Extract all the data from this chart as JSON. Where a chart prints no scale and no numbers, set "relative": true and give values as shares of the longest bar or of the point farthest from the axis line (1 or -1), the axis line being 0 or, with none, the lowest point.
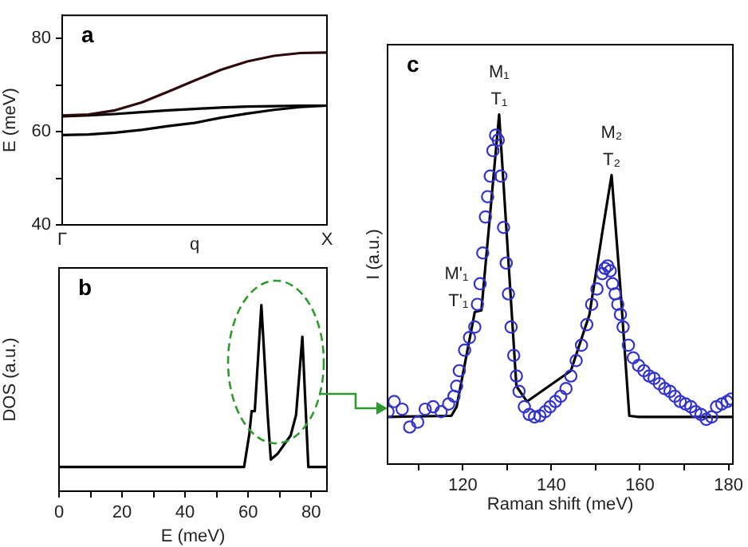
{
  "chart_data": [
    {
      "type": "line",
      "title": "a",
      "xlabel": "q",
      "ylabel": "E (meV)",
      "categories": [
        "Γ",
        null,
        null,
        null,
        null,
        null,
        null,
        null,
        null,
        null,
        "X"
      ],
      "ylim": [
        40,
        85
      ],
      "yticks": [
        40,
        {
          "value": 50,
          "label": null
        },
        60,
        {
          "value": 70,
          "label": null
        },
        80
      ],
      "grid": false,
      "legend": false,
      "series": [
        {
          "color": "#2b0a0a",
          "values": [
            63.5,
            63.7,
            64.6,
            66.3,
            68.6,
            71.0,
            73.3,
            75.1,
            76.3,
            76.9,
            77.0
          ]
        },
        {
          "color": "#000000",
          "values": [
            63.3,
            63.5,
            63.8,
            64.2,
            64.6,
            64.9,
            65.2,
            65.4,
            65.5,
            65.6,
            65.6
          ]
        },
        {
          "color": "#000000",
          "values": [
            59.3,
            59.4,
            59.8,
            60.4,
            61.2,
            61.9,
            63.0,
            63.9,
            64.7,
            65.3,
            65.6
          ]
        }
      ]
    },
    {
      "type": "line",
      "title": "b",
      "xlabel": "E (meV)",
      "ylabel": "DOS (a.u.)",
      "relative": true,
      "xlim": [
        0,
        85
      ],
      "xticks": [
        0,
        {
          "value": 10,
          "label": null
        },
        20,
        {
          "value": 30,
          "label": null
        },
        40,
        {
          "value": 50,
          "label": null
        },
        60,
        {
          "value": 70,
          "label": null
        },
        80
      ],
      "tick_labels": "x",
      "grid": false,
      "legend": false,
      "series": [
        {
          "color": "#000000",
          "x": [
            0,
            58.7,
            60.4,
            61.1,
            62.1,
            64.2,
            66.2,
            67.2,
            69.3,
            73.5,
            75.2,
            77.2,
            79.1,
            80,
            85
          ],
          "values": [
            0.13,
            0.13,
            0.31,
            0.43,
            0.43,
            1.0,
            0.41,
            0.17,
            0.2,
            0.3,
            0.41,
            0.83,
            0.13,
            0.13,
            0.13
          ]
        }
      ]
    },
    {
      "type": "scatter",
      "title": "c",
      "xlabel": "Raman shift (meV)",
      "ylabel": "I (a.u.)",
      "relative": true,
      "xlim": [
        103,
        181
      ],
      "xticks": [
        {
          "value": 110,
          "label": null
        },
        120,
        {
          "value": 130,
          "label": null
        },
        140,
        {
          "value": 150,
          "label": null
        },
        160,
        {
          "value": 170,
          "label": null
        },
        180
      ],
      "tick_labels": "x",
      "grid": false,
      "legend": false,
      "annotations": [
        {
          "text": "M₁",
          "x": 128.2,
          "y": 1.0
        },
        {
          "text": "T₁",
          "x": 128.2,
          "y": 1.0
        },
        {
          "text": "M₂",
          "x": 153.6,
          "y": 0.827
        },
        {
          "text": "T₂",
          "x": 153.6,
          "y": 0.827
        },
        {
          "text": "M'₁",
          "x": 122.7,
          "y": 0.435
        },
        {
          "text": "T'₁",
          "x": 122.7,
          "y": 0.435
        }
      ],
      "series": [
        {
          "type": "scatter",
          "marker": "circle",
          "color": "#3333cc",
          "x": [
            103.1,
            104.5,
            106.3,
            108.0,
            109.8,
            111.5,
            113.3,
            115.1,
            116.8,
            118.0,
            118.6,
            119.2,
            120.4,
            121.5,
            122.7,
            123.3,
            123.9,
            124.5,
            125.1,
            125.6,
            126.2,
            126.8,
            127.4,
            128.0,
            128.6,
            129.2,
            129.8,
            130.3,
            130.9,
            131.5,
            132.1,
            132.7,
            133.9,
            135.0,
            136.2,
            137.4,
            138.6,
            139.7,
            140.9,
            142.1,
            143.3,
            144.4,
            145.6,
            146.8,
            148.0,
            149.1,
            150.3,
            151.5,
            152.1,
            152.7,
            153.3,
            153.8,
            154.4,
            155.0,
            155.6,
            156.2,
            157.4,
            158.5,
            159.7,
            160.9,
            162.1,
            163.2,
            164.4,
            165.6,
            166.8,
            167.9,
            169.1,
            170.3,
            171.5,
            172.6,
            173.8,
            175.0,
            176.2,
            177.3,
            178.5,
            179.7,
            180.6
          ],
          "values": [
            0.15,
            0.179,
            0.157,
            0.106,
            0.12,
            0.157,
            0.164,
            0.15,
            0.172,
            0.194,
            0.223,
            0.267,
            0.326,
            0.362,
            0.392,
            0.457,
            0.516,
            0.604,
            0.707,
            0.765,
            0.824,
            0.897,
            0.941,
            0.927,
            0.824,
            0.677,
            0.575,
            0.487,
            0.392,
            0.311,
            0.252,
            0.208,
            0.164,
            0.142,
            0.135,
            0.138,
            0.15,
            0.164,
            0.179,
            0.194,
            0.216,
            0.252,
            0.296,
            0.34,
            0.399,
            0.457,
            0.501,
            0.545,
            0.56,
            0.567,
            0.553,
            0.516,
            0.487,
            0.457,
            0.428,
            0.392,
            0.34,
            0.304,
            0.282,
            0.267,
            0.252,
            0.245,
            0.23,
            0.216,
            0.208,
            0.194,
            0.179,
            0.172,
            0.164,
            0.15,
            0.142,
            0.128,
            0.135,
            0.164,
            0.172,
            0.179,
            0.186
          ]
        },
        {
          "type": "line",
          "color": "#000000",
          "x": [
            103,
            117.4,
            118.6,
            122.7,
            124.2,
            128.2,
            132.1,
            134.5,
            144.4,
            148.6,
            151.5,
            153.6,
            155.6,
            157.6,
            159.7,
            181
          ],
          "values": [
            0.135,
            0.138,
            0.164,
            0.435,
            0.44,
            1.0,
            0.223,
            0.179,
            0.267,
            0.428,
            0.663,
            0.827,
            0.501,
            0.138,
            0.135,
            0.135
          ]
        }
      ]
    }
  ]
}
